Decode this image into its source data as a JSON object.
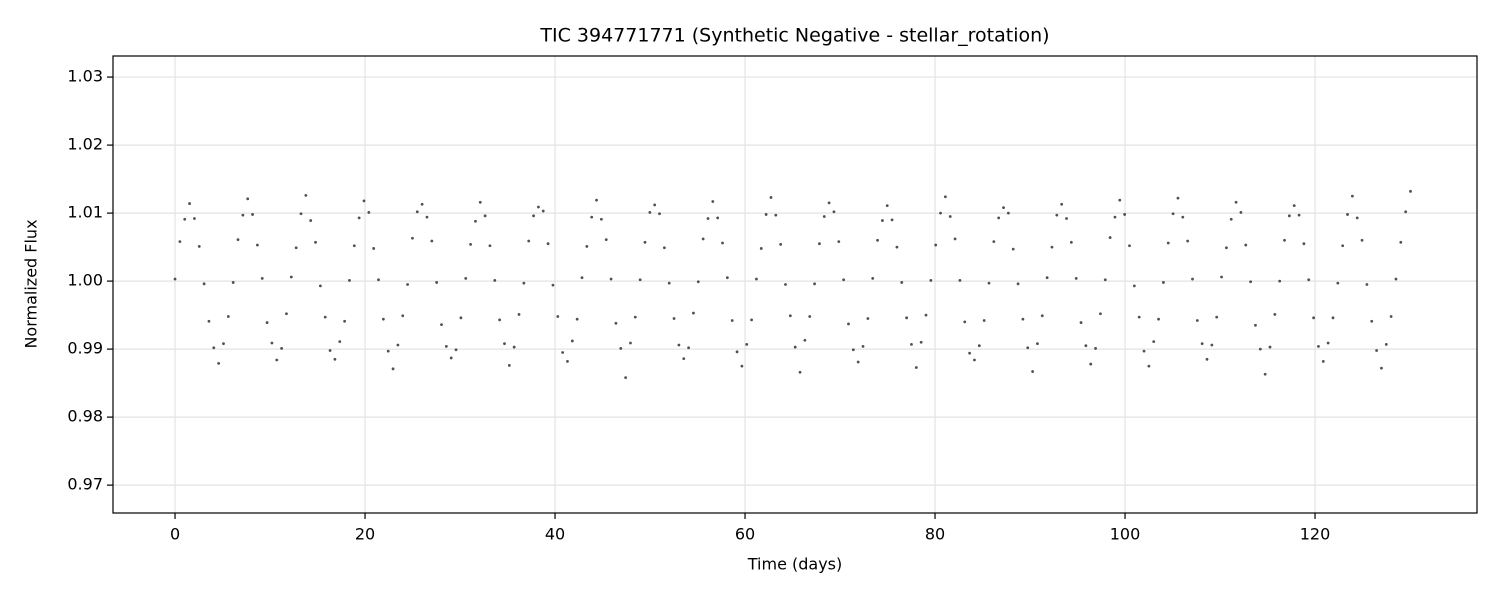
{
  "chart_data": {
    "type": "scatter",
    "title": "TIC 394771771 (Synthetic Negative - stellar_rotation)",
    "x_label": "Time (days)",
    "y_label": "Normalized Flux",
    "color": "#333333",
    "grid": true,
    "xlim": [
      -6.53,
      137.05
    ],
    "ylim": [
      0.9659,
      1.0331
    ],
    "xticks": [
      0,
      20,
      40,
      60,
      80,
      100,
      120
    ],
    "yticks": [
      0.97,
      0.98,
      0.99,
      {
        "value": 1,
        "label": "1.00"
      },
      1.01,
      1.02,
      1.03
    ],
    "series": [
      {
        "name": "flux",
        "color": "#333333",
        "x": [
          0,
          0.51,
          1.02,
          1.53,
          2.04,
          2.55,
          3.06,
          3.57,
          4.08,
          4.59,
          5.1,
          5.61,
          6.12,
          6.63,
          7.14,
          7.65,
          8.16,
          8.67,
          9.18,
          9.69,
          10.2,
          10.71,
          11.22,
          11.73,
          12.24,
          12.75,
          13.26,
          13.77,
          14.28,
          14.79,
          15.3,
          15.81,
          16.32,
          16.83,
          17.34,
          17.85,
          18.36,
          18.87,
          19.38,
          19.89,
          20.4,
          20.91,
          21.42,
          21.93,
          22.44,
          22.95,
          23.46,
          23.97,
          24.48,
          24.99,
          25.5,
          26.01,
          26.52,
          27.03,
          27.54,
          28.05,
          28.56,
          29.07,
          29.58,
          30.09,
          30.6,
          31.11,
          31.62,
          32.13,
          32.64,
          33.15,
          33.66,
          34.17,
          34.68,
          35.19,
          35.7,
          36.21,
          36.72,
          37.23,
          37.74,
          38.25,
          38.76,
          39.27,
          39.78,
          40.29,
          40.8,
          41.31,
          41.82,
          42.33,
          42.84,
          43.35,
          43.86,
          44.37,
          44.88,
          45.39,
          45.9,
          46.41,
          46.92,
          47.43,
          47.94,
          48.45,
          48.96,
          49.47,
          49.98,
          50.49,
          51,
          51.51,
          52.02,
          52.53,
          53.04,
          53.55,
          54.06,
          54.57,
          55.08,
          55.59,
          56.1,
          56.61,
          57.12,
          57.63,
          58.14,
          58.65,
          59.16,
          59.67,
          60.18,
          60.69,
          61.2,
          61.71,
          62.22,
          62.73,
          63.24,
          63.75,
          64.26,
          64.77,
          65.28,
          65.79,
          66.3,
          66.81,
          67.32,
          67.83,
          68.34,
          68.85,
          69.36,
          69.87,
          70.38,
          70.89,
          71.4,
          71.91,
          72.42,
          72.93,
          73.44,
          73.95,
          74.46,
          74.97,
          75.48,
          75.99,
          76.5,
          77.01,
          77.52,
          78.03,
          78.54,
          79.05,
          79.56,
          80.07,
          80.58,
          81.09,
          81.6,
          82.11,
          82.62,
          83.13,
          83.64,
          84.15,
          84.66,
          85.17,
          85.68,
          86.19,
          86.7,
          87.21,
          87.72,
          88.23,
          88.74,
          89.25,
          89.76,
          90.27,
          90.78,
          91.29,
          91.8,
          92.31,
          92.82,
          93.33,
          93.84,
          94.35,
          94.86,
          95.37,
          95.88,
          96.39,
          96.9,
          97.41,
          97.92,
          98.43,
          98.94,
          99.45,
          99.96,
          100.47,
          100.98,
          101.49,
          102,
          102.51,
          103.02,
          103.53,
          104.04,
          104.55,
          105.06,
          105.57,
          106.08,
          106.59,
          107.1,
          107.61,
          108.12,
          108.63,
          109.14,
          109.65,
          110.16,
          110.67,
          111.18,
          111.69,
          112.2,
          112.71,
          113.22,
          113.73,
          114.24,
          114.75,
          115.26,
          115.77,
          116.28,
          116.79,
          117.3,
          117.81,
          118.32,
          118.83,
          119.34,
          119.85,
          120.36,
          120.87,
          121.38,
          121.89,
          122.4,
          122.91,
          123.42,
          123.93,
          124.44,
          124.95,
          125.46,
          125.97,
          126.48,
          126.99,
          127.5,
          128.01,
          128.52,
          129.03,
          129.54,
          130.05
        ],
        "values": [
          1.0003,
          1.0058,
          1.0091,
          1.0114,
          1.0092,
          1.0051,
          0.9996,
          0.9941,
          0.9902,
          0.9879,
          0.9908,
          0.9948,
          0.9998,
          1.0061,
          1.0097,
          1.0121,
          1.0098,
          1.0053,
          1.0004,
          0.9939,
          0.9909,
          0.9884,
          0.9901,
          0.9952,
          1.0006,
          1.0049,
          1.0099,
          1.0126,
          1.0089,
          1.0057,
          0.9993,
          0.9947,
          0.9898,
          0.9885,
          0.9911,
          0.9941,
          1.0001,
          1.0052,
          1.0093,
          1.0118,
          1.0101,
          1.0048,
          1.0002,
          0.9944,
          0.9897,
          0.9871,
          0.9906,
          0.9949,
          0.9995,
          1.0063,
          1.0102,
          1.0113,
          1.0094,
          1.0059,
          0.9998,
          0.9936,
          0.9904,
          0.9887,
          0.9899,
          0.9946,
          1.0004,
          1.0054,
          1.0088,
          1.0116,
          1.0096,
          1.0052,
          1.0001,
          0.9943,
          0.9908,
          0.9876,
          0.9903,
          0.9951,
          0.9997,
          1.0059,
          1.0096,
          1.0109,
          1.0103,
          1.0055,
          0.9994,
          0.9948,
          0.9895,
          0.9882,
          0.9912,
          0.9944,
          1.0005,
          1.0051,
          1.0094,
          1.0119,
          1.0091,
          1.0061,
          1.0003,
          0.9938,
          0.9901,
          0.9858,
          0.9909,
          0.9947,
          1.0002,
          1.0057,
          1.0101,
          1.0112,
          1.0099,
          1.0049,
          0.9997,
          0.9945,
          0.9906,
          0.9886,
          0.9902,
          0.9953,
          0.9999,
          1.0062,
          1.0092,
          1.0117,
          1.0093,
          1.0056,
          1.0005,
          0.9942,
          0.9896,
          0.9875,
          0.9907,
          0.9943,
          1.0003,
          1.0048,
          1.0098,
          1.0123,
          1.0097,
          1.0054,
          0.9995,
          0.9949,
          0.9903,
          0.9866,
          0.9913,
          0.9948,
          0.9996,
          1.0055,
          1.0095,
          1.0115,
          1.0102,
          1.0058,
          1.0002,
          0.9937,
          0.9899,
          0.9881,
          0.9904,
          0.9945,
          1.0004,
          1.006,
          1.0089,
          1.0111,
          1.009,
          1.005,
          0.9998,
          0.9946,
          0.9907,
          0.9873,
          0.991,
          0.995,
          1.0001,
          1.0053,
          1.01,
          1.0124,
          1.0095,
          1.0062,
          1.0001,
          0.994,
          0.9894,
          0.9884,
          0.9905,
          0.9942,
          0.9997,
          1.0058,
          1.0093,
          1.0108,
          1.01,
          1.0047,
          0.9996,
          0.9944,
          0.9902,
          0.9867,
          0.9908,
          0.9949,
          1.0005,
          1.005,
          1.0097,
          1.0113,
          1.0092,
          1.0057,
          1.0004,
          0.9939,
          0.9905,
          0.9878,
          0.9901,
          0.9952,
          1.0002,
          1.0064,
          1.0094,
          1.0119,
          1.0098,
          1.0052,
          0.9993,
          0.9947,
          0.9897,
          0.9875,
          0.9911,
          0.9944,
          0.9998,
          1.0056,
          1.0099,
          1.0122,
          1.0094,
          1.0059,
          1.0003,
          0.9942,
          0.9908,
          0.9885,
          0.9906,
          0.9947,
          1.0006,
          1.0049,
          1.0091,
          1.0116,
          1.0101,
          1.0053,
          0.9999,
          0.9935,
          0.99,
          0.9863,
          0.9903,
          0.9951,
          1.0,
          1.006,
          1.0096,
          1.0111,
          1.0097,
          1.0055,
          1.0002,
          0.9946,
          0.9904,
          0.9882,
          0.9909,
          0.9946,
          0.9997,
          1.0052,
          1.0098,
          1.0125,
          1.0093,
          1.006,
          0.9995,
          0.9941,
          0.9898,
          0.9872,
          0.9907,
          0.9948,
          1.0003,
          1.0057,
          1.0102,
          1.0132
        ]
      }
    ]
  }
}
